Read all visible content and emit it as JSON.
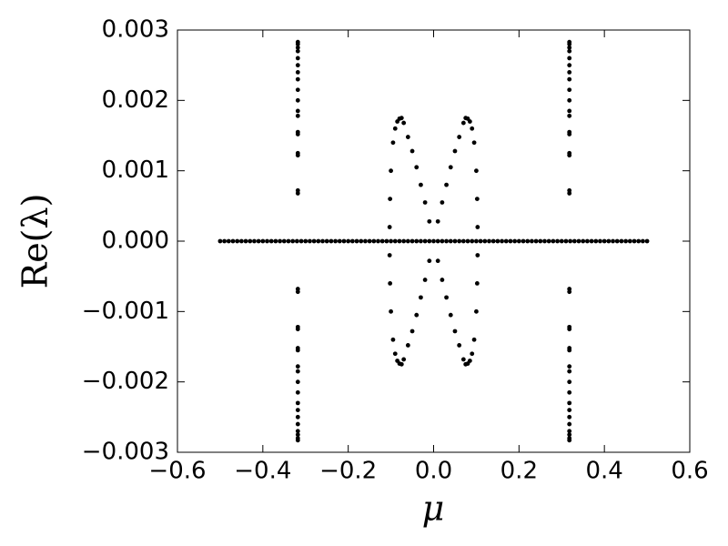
{
  "chart_data": {
    "type": "scatter",
    "color": "#000000",
    "x_label": "μ",
    "y_label": "Re(λ)",
    "xlim": [
      -0.6,
      0.6
    ],
    "ylim": [
      -0.003,
      0.003
    ],
    "xticks": [
      {
        "value": -0.6,
        "label": "−0.6"
      },
      {
        "value": -0.4,
        "label": "−0.4"
      },
      {
        "value": -0.2,
        "label": "−0.2"
      },
      {
        "value": 0,
        "label": "0.0"
      },
      {
        "value": 0.2,
        "label": "0.2"
      },
      {
        "value": 0.4,
        "label": "0.4"
      },
      {
        "value": 0.6,
        "label": "0.6"
      }
    ],
    "yticks": [
      {
        "value": -0.003,
        "label": "−0.003"
      },
      {
        "value": -0.002,
        "label": "−0.002"
      },
      {
        "value": -0.001,
        "label": "−0.001"
      },
      {
        "value": 0,
        "label": "0.000"
      },
      {
        "value": 0.001,
        "label": "0.001"
      },
      {
        "value": 0.002,
        "label": "0.002"
      },
      {
        "value": 0.003,
        "label": "0.003"
      }
    ],
    "x": [
      -0.5,
      -0.49,
      -0.48,
      -0.47,
      -0.46,
      -0.45,
      -0.44,
      -0.43,
      -0.42,
      -0.41,
      -0.4,
      -0.39,
      -0.38,
      -0.37,
      -0.36,
      -0.35,
      -0.34,
      -0.33,
      -0.32,
      -0.31,
      -0.3,
      -0.29,
      -0.28,
      -0.27,
      -0.26,
      -0.25,
      -0.24,
      -0.23,
      -0.22,
      -0.21,
      -0.2,
      -0.19,
      -0.18,
      -0.17,
      -0.16,
      -0.15,
      -0.14,
      -0.13,
      -0.12,
      -0.11,
      -0.1,
      -0.09,
      -0.08,
      -0.07,
      -0.06,
      -0.05,
      -0.04,
      -0.03,
      -0.02,
      -0.01,
      0,
      0.01,
      0.02,
      0.03,
      0.04,
      0.05,
      0.06,
      0.07,
      0.08,
      0.09,
      0.1,
      0.11,
      0.12,
      0.13,
      0.14,
      0.15,
      0.16,
      0.17,
      0.18,
      0.19,
      0.2,
      0.21,
      0.22,
      0.23,
      0.24,
      0.25,
      0.26,
      0.27,
      0.28,
      0.29,
      0.3,
      0.31,
      0.32,
      0.33,
      0.34,
      0.35,
      0.36,
      0.37,
      0.38,
      0.39,
      0.4,
      0.41,
      0.42,
      0.43,
      0.44,
      0.45,
      0.46,
      0.47,
      0.48,
      0.49,
      0.5,
      0.01,
      0.02,
      0.03,
      0.04,
      0.05,
      0.06,
      0.07,
      0.075,
      0.08,
      0.085,
      0.09,
      0.095,
      0.1,
      0.102,
      0.103,
      0.01,
      0.02,
      0.03,
      0.04,
      0.05,
      0.06,
      0.07,
      0.075,
      0.08,
      0.085,
      0.09,
      0.095,
      0.1,
      0.102,
      0.103,
      -0.01,
      -0.02,
      -0.03,
      -0.04,
      -0.05,
      -0.06,
      -0.07,
      -0.075,
      -0.08,
      -0.085,
      -0.09,
      -0.095,
      -0.1,
      -0.102,
      -0.103,
      -0.01,
      -0.02,
      -0.03,
      -0.04,
      -0.05,
      -0.06,
      -0.07,
      -0.075,
      -0.08,
      -0.085,
      -0.09,
      -0.095,
      -0.1,
      -0.102,
      -0.103,
      0.318,
      0.318,
      0.318,
      0.318,
      0.318,
      0.318,
      0.318,
      0.318,
      0.318,
      0.318,
      0.318,
      0.318,
      0.318,
      0.318,
      0.318,
      0.318,
      0.318,
      0.318,
      0.318,
      0.318,
      0.318,
      0.318,
      0.318,
      0.318,
      0.318,
      0.318,
      0.318,
      0.318,
      0.318,
      0.318,
      0.318,
      0.318,
      0.318,
      0.318,
      0.318,
      0.318,
      -0.318,
      -0.318,
      -0.318,
      -0.318,
      -0.318,
      -0.318,
      -0.318,
      -0.318,
      -0.318,
      -0.318,
      -0.318,
      -0.318,
      -0.318,
      -0.318,
      -0.318,
      -0.318,
      -0.318,
      -0.318,
      -0.318,
      -0.318,
      -0.318,
      -0.318,
      -0.318,
      -0.318,
      -0.318,
      -0.318,
      -0.318,
      -0.318,
      -0.318,
      -0.318,
      -0.318,
      -0.318,
      -0.318,
      -0.318,
      -0.318,
      -0.318
    ],
    "values": [
      0,
      0,
      0,
      0,
      0,
      0,
      0,
      0,
      0,
      0,
      0,
      0,
      0,
      0,
      0,
      0,
      0,
      0,
      0,
      0,
      0,
      0,
      0,
      0,
      0,
      0,
      0,
      0,
      0,
      0,
      0,
      0,
      0,
      0,
      0,
      0,
      0,
      0,
      0,
      0,
      0,
      0,
      0,
      0,
      0,
      0,
      0,
      0,
      0,
      0,
      0,
      0,
      0,
      0,
      0,
      0,
      0,
      0,
      0,
      0,
      0,
      0,
      0,
      0,
      0,
      0,
      0,
      0,
      0,
      0,
      0,
      0,
      0,
      0,
      0,
      0,
      0,
      0,
      0,
      0,
      0,
      0,
      0,
      0,
      0,
      0,
      0,
      0,
      0,
      0,
      0,
      0,
      0,
      0,
      0,
      0,
      0,
      0,
      0,
      0,
      0,
      0.00028,
      0.00055,
      0.0008,
      0.00105,
      0.00128,
      0.00148,
      0.00168,
      0.00175,
      0.00174,
      0.0017,
      0.0016,
      0.0014,
      0.001,
      0.0006,
      0.0002,
      -0.00028,
      -0.00055,
      -0.0008,
      -0.00105,
      -0.00128,
      -0.00148,
      -0.00168,
      -0.00175,
      -0.00174,
      -0.0017,
      -0.0016,
      -0.0014,
      -0.001,
      -0.0006,
      -0.0002,
      0.00028,
      0.00055,
      0.0008,
      0.00105,
      0.00128,
      0.00148,
      0.00168,
      0.00175,
      0.00174,
      0.0017,
      0.0016,
      0.0014,
      0.001,
      0.0006,
      0.0002,
      -0.00028,
      -0.00055,
      -0.0008,
      -0.00105,
      -0.00128,
      -0.00148,
      -0.00168,
      -0.00175,
      -0.00174,
      -0.0017,
      -0.0016,
      -0.0014,
      -0.001,
      -0.0006,
      -0.0002,
      0.00068,
      0.00072,
      0.00122,
      0.00125,
      0.00152,
      0.00155,
      0.00178,
      0.00185,
      0.002,
      0.00215,
      0.0023,
      0.0024,
      0.0025,
      0.0026,
      0.0027,
      0.00275,
      0.0028,
      0.00283,
      -0.00068,
      -0.00072,
      -0.00122,
      -0.00125,
      -0.00152,
      -0.00155,
      -0.00178,
      -0.00185,
      -0.002,
      -0.00215,
      -0.0023,
      -0.0024,
      -0.0025,
      -0.0026,
      -0.0027,
      -0.00275,
      -0.0028,
      -0.00283,
      0.00068,
      0.00072,
      0.00122,
      0.00125,
      0.00152,
      0.00155,
      0.00178,
      0.00185,
      0.002,
      0.00215,
      0.0023,
      0.0024,
      0.0025,
      0.0026,
      0.0027,
      0.00275,
      0.0028,
      0.00283,
      -0.00068,
      -0.00072,
      -0.00122,
      -0.00125,
      -0.00152,
      -0.00155,
      -0.00178,
      -0.00185,
      -0.002,
      -0.00215,
      -0.0023,
      -0.0024,
      -0.0025,
      -0.0026,
      -0.0027,
      -0.00275,
      -0.0028,
      -0.00283
    ]
  }
}
